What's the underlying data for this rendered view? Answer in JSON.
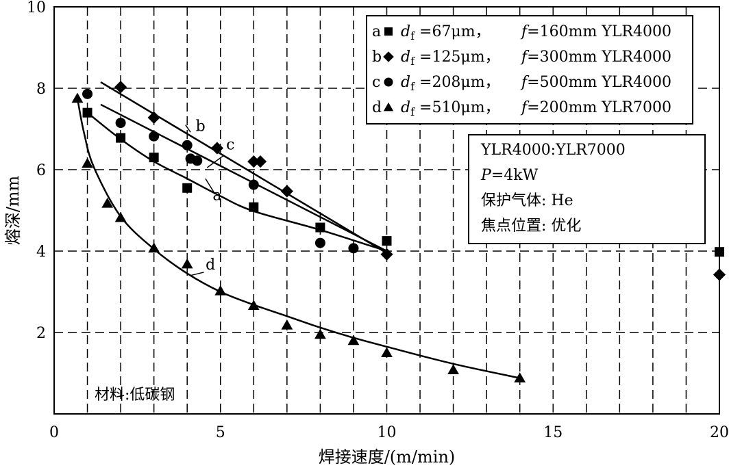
{
  "chart_data": {
    "type": "scatter",
    "xlabel": "焊接速度/(m/min)",
    "ylabel": "熔深/mm",
    "xlim": [
      0,
      20
    ],
    "ylim": [
      0,
      10
    ],
    "x_ticks": [
      0,
      5,
      10,
      15,
      20
    ],
    "y_ticks": [
      2,
      4,
      6,
      8,
      10
    ],
    "grid": true,
    "legend_position": "top-right",
    "series": [
      {
        "id": "a",
        "marker": "square",
        "legend": {
          "letter": "a",
          "d_symbol": "d",
          "d_sub": "f",
          "d_value": " =67μm，",
          "f_symbol": "f",
          "f_value": "=160mm YLR4000"
        },
        "points": [
          [
            1,
            7.4
          ],
          [
            2,
            6.78
          ],
          [
            3,
            6.3
          ],
          [
            4,
            5.55
          ],
          [
            6,
            5.08
          ],
          [
            8,
            4.58
          ],
          [
            10,
            4.25
          ],
          [
            20,
            3.98
          ]
        ],
        "fit": [
          [
            1,
            7.4
          ],
          [
            2,
            6.75
          ],
          [
            3,
            6.2
          ],
          [
            4,
            5.78
          ],
          [
            5,
            5.35
          ],
          [
            6,
            4.98
          ],
          [
            8,
            4.52
          ],
          [
            10,
            4.0
          ]
        ]
      },
      {
        "id": "b",
        "marker": "diamond",
        "legend": {
          "letter": "b",
          "d_symbol": "d",
          "d_sub": "f",
          "d_value": " =125μm，",
          "f_symbol": "f",
          "f_value": "=300mm YLR4000"
        },
        "points": [
          [
            2,
            8.03
          ],
          [
            3,
            7.28
          ],
          [
            4.9,
            6.53
          ],
          [
            6,
            6.2
          ],
          [
            6.2,
            6.2
          ],
          [
            7,
            5.47
          ],
          [
            10,
            3.92
          ],
          [
            20,
            3.42
          ]
        ],
        "fit": [
          [
            1.4,
            8.15
          ],
          [
            10,
            3.95
          ]
        ]
      },
      {
        "id": "c",
        "marker": "circle",
        "legend": {
          "letter": "c",
          "d_symbol": "d",
          "d_sub": "f",
          "d_value": " =208μm，",
          "f_symbol": "f",
          "f_value": "=500mm YLR4000"
        },
        "points": [
          [
            1,
            7.86
          ],
          [
            2,
            7.15
          ],
          [
            3,
            6.82
          ],
          [
            4,
            6.6
          ],
          [
            4.1,
            6.27
          ],
          [
            4.3,
            6.22
          ],
          [
            6,
            5.63
          ],
          [
            8,
            4.2
          ],
          [
            9,
            4.07
          ]
        ],
        "fit": [
          [
            1.4,
            7.6
          ],
          [
            10,
            4.0
          ]
        ]
      },
      {
        "id": "d",
        "marker": "triangle",
        "legend": {
          "letter": "d",
          "d_symbol": "d",
          "d_sub": "f",
          "d_value": " =510μm，",
          "f_symbol": "f",
          "f_value": "=200mm YLR7000"
        },
        "points": [
          [
            0.7,
            7.75
          ],
          [
            1,
            6.15
          ],
          [
            1.6,
            5.17
          ],
          [
            2,
            4.82
          ],
          [
            3,
            4.07
          ],
          [
            4,
            3.68
          ],
          [
            5,
            3.02
          ],
          [
            6,
            2.66
          ],
          [
            7,
            2.18
          ],
          [
            8,
            1.95
          ],
          [
            9,
            1.8
          ],
          [
            10,
            1.5
          ],
          [
            12,
            1.08
          ],
          [
            14,
            0.88
          ]
        ],
        "fit": [
          [
            0.7,
            7.75
          ],
          [
            0.9,
            6.9
          ],
          [
            1.2,
            6.05
          ],
          [
            2,
            4.85
          ],
          [
            3,
            4.05
          ],
          [
            4,
            3.45
          ],
          [
            5,
            3.0
          ],
          [
            6,
            2.68
          ],
          [
            7,
            2.4
          ],
          [
            8,
            2.12
          ],
          [
            9,
            1.87
          ],
          [
            10,
            1.65
          ],
          [
            12,
            1.23
          ],
          [
            14,
            0.88
          ]
        ]
      }
    ],
    "curve_labels": [
      {
        "text": "a",
        "x": 4.9,
        "y": 5.25,
        "leader": [
          [
            4.8,
            5.45
          ],
          [
            4.55,
            5.78
          ]
        ]
      },
      {
        "text": "b",
        "x": 4.4,
        "y": 6.95,
        "leader": [
          [
            4.1,
            6.92
          ],
          [
            3.95,
            7.1
          ]
        ]
      },
      {
        "text": "c",
        "x": 5.3,
        "y": 6.5,
        "leader": [
          [
            5.1,
            6.35
          ],
          [
            4.6,
            6.05
          ]
        ]
      },
      {
        "text": "d",
        "x": 4.7,
        "y": 3.55,
        "leader": [
          [
            4.5,
            3.48
          ],
          [
            4.1,
            3.4
          ]
        ]
      }
    ],
    "info_box": {
      "line1": "YLR4000:YLR7000",
      "line2_symbol": "P",
      "line2_value": "=4kW",
      "line3": "保护气体: He",
      "line4": "焦点位置:  优化"
    },
    "annotation": "材料:低碳钢"
  }
}
